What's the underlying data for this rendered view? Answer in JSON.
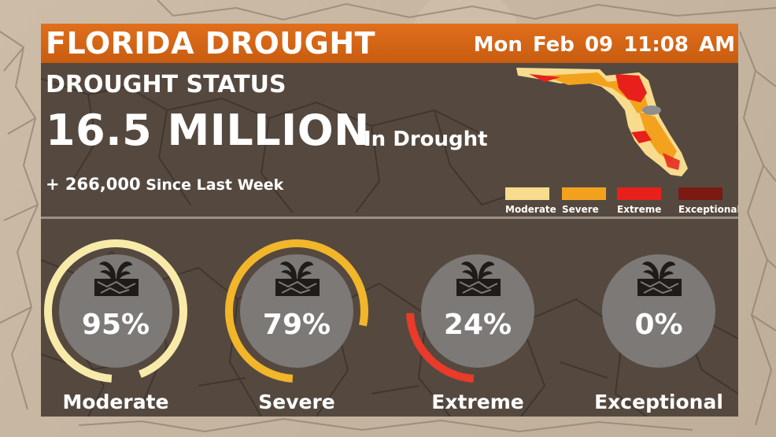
{
  "header": {
    "title": "FLORIDA DROUGHT",
    "datetime": "Mon  Feb 09  11:08 AM"
  },
  "status": {
    "label": "DROUGHT STATUS",
    "population": "16.5 MILLION",
    "population_suffix": "In Drought",
    "change_value": "+ 266,000",
    "change_text": "Since Last Week"
  },
  "legend": [
    {
      "label": "Moderate",
      "color": "#f8dc8e"
    },
    {
      "label": "Severe",
      "color": "#f3a21e"
    },
    {
      "label": "Extreme",
      "color": "#e8201b"
    },
    {
      "label": "Exceptional",
      "color": "#7a1a12"
    }
  ],
  "map": {
    "icon": "florida-drought-map"
  },
  "gauges": [
    {
      "label": "Moderate",
      "percent": "95%",
      "value": 95,
      "color": "#f8ebaa"
    },
    {
      "label": "Severe",
      "percent": "79%",
      "value": 79,
      "color": "#f2b62a"
    },
    {
      "label": "Extreme",
      "percent": "24%",
      "value": 24,
      "color": "#ea3a2a"
    },
    {
      "label": "Exceptional",
      "percent": "0%",
      "value": 0,
      "color": "#7a1a12"
    }
  ],
  "icon": "dry-soil-sprout-icon"
}
